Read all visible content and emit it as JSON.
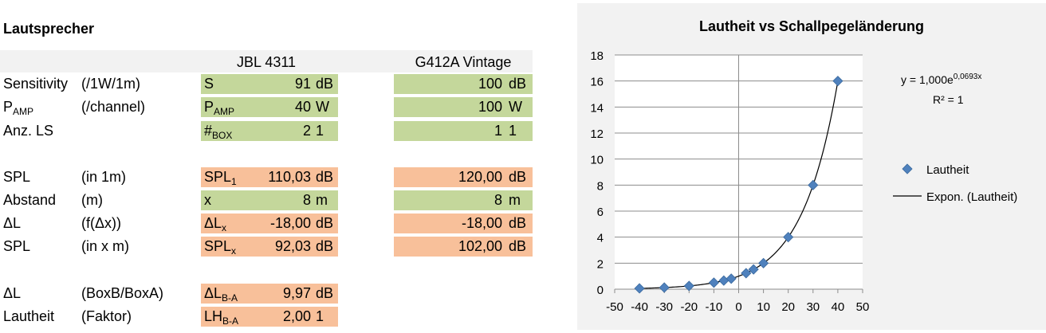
{
  "sheet": {
    "title": "Lautsprecher",
    "col_headers": [
      "JBL 4311",
      "G412A Vintage"
    ],
    "rows": [
      {
        "label": "Sensitivity",
        "label_sub": "",
        "unit": "(/1W/1m)",
        "sym": "S",
        "sym_sub": "",
        "a_val": "91",
        "a_unit": "dB",
        "b_val": "100",
        "b_unit": "dB",
        "color": "green"
      },
      {
        "label": "P",
        "label_sub": "AMP",
        "unit": "(/channel)",
        "sym": "P",
        "sym_sub": "AMP",
        "a_val": "40",
        "a_unit": "W",
        "b_val": "100",
        "b_unit": "W",
        "color": "green"
      },
      {
        "label": "Anz. LS",
        "label_sub": "",
        "unit": "",
        "sym": "#",
        "sym_sub": "BOX",
        "a_val": "2",
        "a_unit": "1",
        "b_val": "1",
        "b_unit": "1",
        "color": "green"
      },
      {
        "label": "SPL",
        "label_sub": "",
        "unit": "(in 1m)",
        "sym": "SPL",
        "sym_sub": "1",
        "a_val": "110,03",
        "a_unit": "dB",
        "b_val": "120,00",
        "b_unit": "dB",
        "color": "orange"
      },
      {
        "label": "Abstand",
        "label_sub": "",
        "unit": "(m)",
        "sym": "x",
        "sym_sub": "",
        "a_val": "8",
        "a_unit": "m",
        "b_val": "8",
        "b_unit": "m",
        "color": "green"
      },
      {
        "label": "ΔL",
        "label_sub": "",
        "unit": "(f(Δx))",
        "sym": "ΔL",
        "sym_sub": "x",
        "a_val": "-18,00",
        "a_unit": "dB",
        "b_val": "-18,00",
        "b_unit": "dB",
        "color": "orange"
      },
      {
        "label": "SPL",
        "label_sub": "",
        "unit": "(in x m)",
        "sym": "SPL",
        "sym_sub": "x",
        "a_val": "92,03",
        "a_unit": "dB",
        "b_val": "102,00",
        "b_unit": "dB",
        "color": "orange"
      },
      {
        "label": "ΔL",
        "label_sub": "",
        "unit": "(BoxB/BoxA)",
        "sym": "ΔL",
        "sym_sub": "B-A",
        "a_val": "9,97",
        "a_unit": "dB",
        "b_val": "",
        "b_unit": "",
        "color": "orange"
      },
      {
        "label": "Lautheit",
        "label_sub": "",
        "unit": "(Faktor)",
        "sym": "LH",
        "sym_sub": "B-A",
        "a_val": "2,00",
        "a_unit": "1",
        "b_val": "",
        "b_unit": "",
        "color": "orange"
      }
    ]
  },
  "chart_data": {
    "type": "scatter",
    "title": "Lautheit vs Schallpegeländerung",
    "xlabel": "",
    "ylabel": "",
    "xlim": [
      -50,
      50
    ],
    "ylim": [
      0,
      18
    ],
    "xticks": [
      -50,
      -40,
      -30,
      -20,
      -10,
      0,
      10,
      20,
      30,
      40,
      50
    ],
    "yticks": [
      0,
      2,
      4,
      6,
      8,
      10,
      12,
      14,
      16,
      18
    ],
    "grid": "horizontal",
    "legend_position": "right",
    "series": [
      {
        "name": "Lautheit",
        "marker": "diamond",
        "color": "#4f81bd",
        "points": [
          [
            -40,
            0.0625
          ],
          [
            -30,
            0.125
          ],
          [
            -20,
            0.25
          ],
          [
            -10,
            0.5
          ],
          [
            -6,
            0.66
          ],
          [
            -3,
            0.81
          ],
          [
            3,
            1.23
          ],
          [
            6,
            1.52
          ],
          [
            10,
            2
          ],
          [
            20,
            4
          ],
          [
            30,
            8
          ],
          [
            40,
            16
          ]
        ]
      },
      {
        "name": "Expon. (Lautheit)",
        "line_color": "#000000",
        "fit": {
          "a": 1.0,
          "b": 0.0693
        }
      }
    ],
    "annotation": {
      "eq_prefix": "y = 1,000e",
      "eq_exp": "0,0693x",
      "r2": "R² = 1"
    }
  }
}
